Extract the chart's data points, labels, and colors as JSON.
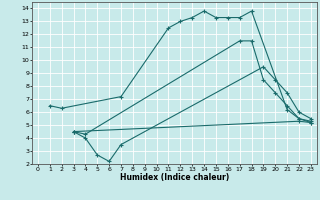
{
  "title": "",
  "xlabel": "Humidex (Indice chaleur)",
  "bg_color": "#c8eaea",
  "grid_color": "#ffffff",
  "line_color": "#1a6b6b",
  "xlim": [
    -0.5,
    23.5
  ],
  "ylim": [
    2,
    14.5
  ],
  "xticks": [
    0,
    1,
    2,
    3,
    4,
    5,
    6,
    7,
    8,
    9,
    10,
    11,
    12,
    13,
    14,
    15,
    16,
    17,
    18,
    19,
    20,
    21,
    22,
    23
  ],
  "yticks": [
    2,
    3,
    4,
    5,
    6,
    7,
    8,
    9,
    10,
    11,
    12,
    13,
    14
  ],
  "lines": [
    {
      "x": [
        1,
        2,
        7,
        11,
        12,
        13,
        14,
        15,
        16,
        17,
        18,
        21,
        22,
        23
      ],
      "y": [
        6.5,
        6.3,
        7.2,
        12.5,
        13.0,
        13.3,
        13.8,
        13.3,
        13.3,
        13.3,
        13.8,
        6.2,
        5.5,
        5.3
      ]
    },
    {
      "x": [
        3,
        4,
        5,
        6,
        7,
        19,
        20,
        21,
        22,
        23
      ],
      "y": [
        4.5,
        4.0,
        2.7,
        2.2,
        3.5,
        9.5,
        8.5,
        7.5,
        6.0,
        5.5
      ]
    },
    {
      "x": [
        3,
        22,
        23
      ],
      "y": [
        4.5,
        5.3,
        5.2
      ]
    },
    {
      "x": [
        3,
        4,
        17,
        18,
        19,
        20,
        21,
        22,
        23
      ],
      "y": [
        4.5,
        4.3,
        11.5,
        11.5,
        8.5,
        7.5,
        6.5,
        5.5,
        5.2
      ]
    }
  ]
}
